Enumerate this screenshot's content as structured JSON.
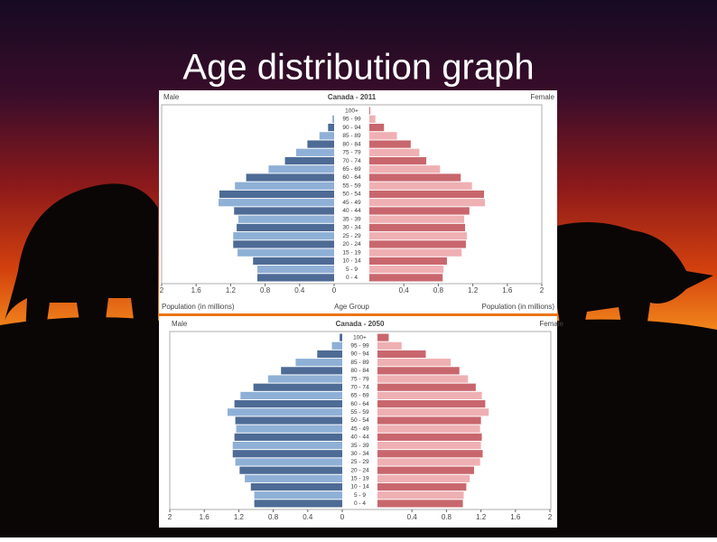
{
  "title": "Age distribution graph",
  "chart_data": [
    {
      "type": "pyramid",
      "title": "Canada - 2011",
      "categories": [
        "100+",
        "95 - 99",
        "90 - 94",
        "85 - 89",
        "80 - 84",
        "75 - 79",
        "70 - 74",
        "65 - 69",
        "60 - 64",
        "55 - 59",
        "50 - 54",
        "45 - 49",
        "40 - 44",
        "35 - 39",
        "30 - 34",
        "25 - 29",
        "20 - 24",
        "15 - 19",
        "10 - 14",
        "5 - 9",
        "0 - 4"
      ],
      "category_label": "Age Group",
      "xlabel": "Population (in millions)",
      "xlabel_right": "Population (in millions)",
      "xlim": [
        0,
        2
      ],
      "xticks": [
        0,
        0.4,
        0.8,
        1.2,
        1.6,
        2
      ],
      "series": [
        {
          "name": "Male",
          "colors": [
            "#4d6b95",
            "#8fb0d6"
          ],
          "values": [
            0,
            0.02,
            0.07,
            0.17,
            0.31,
            0.44,
            0.57,
            0.76,
            1.02,
            1.15,
            1.33,
            1.34,
            1.16,
            1.11,
            1.13,
            1.17,
            1.17,
            1.12,
            0.94,
            0.89,
            0.89
          ]
        },
        {
          "name": "Female",
          "colors": [
            "#c9666d",
            "#efb0b3"
          ],
          "values": [
            0.01,
            0.07,
            0.17,
            0.32,
            0.48,
            0.58,
            0.66,
            0.82,
            1.06,
            1.19,
            1.33,
            1.34,
            1.16,
            1.1,
            1.11,
            1.13,
            1.12,
            1.07,
            0.9,
            0.86,
            0.85
          ]
        }
      ]
    },
    {
      "type": "pyramid",
      "title": "Canada - 2050",
      "categories": [
        "100+",
        "95 - 99",
        "90 - 94",
        "85 - 89",
        "80 - 84",
        "75 - 79",
        "70 - 74",
        "65 - 69",
        "60 - 64",
        "55 - 59",
        "50 - 54",
        "45 - 49",
        "40 - 44",
        "35 - 39",
        "30 - 34",
        "25 - 29",
        "20 - 24",
        "15 - 19",
        "10 - 14",
        "5 - 9",
        "0 - 4"
      ],
      "xlim": [
        0,
        2
      ],
      "xticks": [
        0,
        0.4,
        0.8,
        1.2,
        1.6,
        2
      ],
      "series": [
        {
          "name": "Male",
          "colors": [
            "#4d6b95",
            "#8fb0d6"
          ],
          "values": [
            0.03,
            0.12,
            0.29,
            0.54,
            0.71,
            0.86,
            1.03,
            1.18,
            1.25,
            1.33,
            1.24,
            1.23,
            1.25,
            1.27,
            1.27,
            1.24,
            1.19,
            1.13,
            1.06,
            1.02,
            1.02
          ]
        },
        {
          "name": "Female",
          "colors": [
            "#c9666d",
            "#efb0b3"
          ],
          "values": [
            0.13,
            0.28,
            0.56,
            0.85,
            0.95,
            1.05,
            1.14,
            1.21,
            1.25,
            1.29,
            1.2,
            1.19,
            1.21,
            1.2,
            1.22,
            1.19,
            1.12,
            1.07,
            1.03,
            1.0,
            0.99
          ]
        }
      ]
    }
  ]
}
